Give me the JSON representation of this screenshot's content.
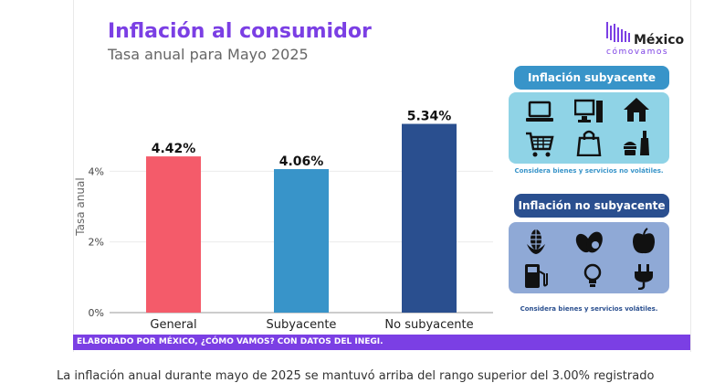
{
  "header": {
    "title": "Inflación al consumidor",
    "subtitle": "Tasa anual para Mayo 2025"
  },
  "logo": {
    "name": "México",
    "tagline": "cómovamos"
  },
  "chart_data": {
    "type": "bar",
    "categories": [
      "General",
      "Subyacente",
      "No subyacente"
    ],
    "values": [
      4.42,
      4.06,
      5.34
    ],
    "value_labels": [
      "4.42%",
      "4.06%",
      "5.34%"
    ],
    "colors": [
      "#f45b6a",
      "#3894c9",
      "#2a4f8f"
    ],
    "ylabel": "Tasa anual",
    "yticks": [
      "0%",
      "2%",
      "4%"
    ],
    "ylim": [
      0,
      6
    ],
    "grid": true
  },
  "panels": {
    "core": {
      "heading": "Inflación subyacente",
      "note": "Considera bienes y servicios no volátiles.",
      "icons": [
        "laptop-icon",
        "desktop-computer-icon",
        "house-icon",
        "shopping-cart-icon",
        "shopping-bag-icon",
        "groceries-icon"
      ],
      "head_color": "#3894c9",
      "box_color": "#8fd3e6",
      "note_color": "#3894c9"
    },
    "noncore": {
      "heading": "Inflación no subyacente",
      "note": "Considera bienes y servicios volátiles.",
      "icons": [
        "corn-icon",
        "avocado-icon",
        "apple-icon",
        "fuel-pump-icon",
        "light-bulb-icon",
        "power-plug-icon"
      ],
      "head_color": "#2a4f8f",
      "box_color": "#8fa9d6",
      "note_color": "#2a4f8f"
    }
  },
  "footer": {
    "text": "ELABORADO POR MÉXICO, ¿CÓMO VAMOS? CON DATOS DEL INEGI."
  },
  "below_text": "La inflación anual durante mayo de 2025 se mantuvó arriba del rango superior del 3.00% registrado"
}
